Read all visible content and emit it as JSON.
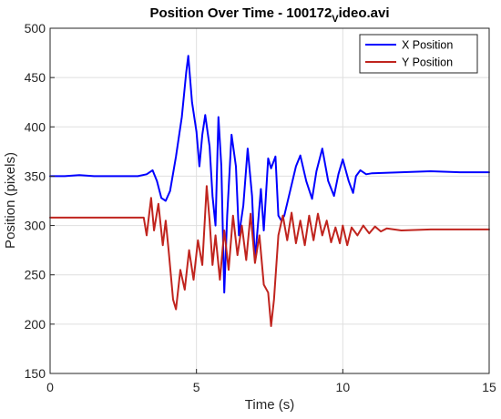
{
  "chart_data": {
    "type": "line",
    "title_main": "Position Over Time - 100172",
    "title_sub": "V",
    "title_tail": "ideo.avi",
    "xlabel": "Time (s)",
    "ylabel": "Position (pixels)",
    "xlim": [
      0,
      15
    ],
    "ylim": [
      150,
      500
    ],
    "xticks": [
      "0",
      "5",
      "10",
      "15"
    ],
    "yticks": [
      "150",
      "200",
      "250",
      "300",
      "350",
      "400",
      "450",
      "500"
    ],
    "grid": true,
    "legend_position": "top-right",
    "series": [
      {
        "name": "X Position",
        "color": "#0000ff",
        "points": [
          [
            0,
            350
          ],
          [
            0.5,
            350
          ],
          [
            1.0,
            351
          ],
          [
            1.5,
            350
          ],
          [
            2.0,
            350
          ],
          [
            2.5,
            350
          ],
          [
            3.0,
            350
          ],
          [
            3.3,
            352
          ],
          [
            3.5,
            356
          ],
          [
            3.65,
            345
          ],
          [
            3.8,
            328
          ],
          [
            3.95,
            325
          ],
          [
            4.1,
            335
          ],
          [
            4.3,
            370
          ],
          [
            4.5,
            410
          ],
          [
            4.65,
            455
          ],
          [
            4.72,
            472
          ],
          [
            4.85,
            425
          ],
          [
            5.0,
            395
          ],
          [
            5.1,
            360
          ],
          [
            5.2,
            392
          ],
          [
            5.3,
            412
          ],
          [
            5.45,
            380
          ],
          [
            5.55,
            330
          ],
          [
            5.65,
            300
          ],
          [
            5.75,
            410
          ],
          [
            5.85,
            360
          ],
          [
            5.95,
            232
          ],
          [
            6.05,
            310
          ],
          [
            6.2,
            392
          ],
          [
            6.35,
            360
          ],
          [
            6.45,
            290
          ],
          [
            6.6,
            320
          ],
          [
            6.75,
            378
          ],
          [
            6.9,
            330
          ],
          [
            7.0,
            265
          ],
          [
            7.1,
            300
          ],
          [
            7.2,
            337
          ],
          [
            7.3,
            295
          ],
          [
            7.45,
            368
          ],
          [
            7.55,
            358
          ],
          [
            7.7,
            370
          ],
          [
            7.8,
            310
          ],
          [
            7.9,
            305
          ],
          [
            8.0,
            310
          ],
          [
            8.2,
            335
          ],
          [
            8.4,
            360
          ],
          [
            8.55,
            371
          ],
          [
            8.75,
            345
          ],
          [
            8.95,
            327
          ],
          [
            9.1,
            355
          ],
          [
            9.3,
            378
          ],
          [
            9.5,
            345
          ],
          [
            9.7,
            330
          ],
          [
            9.85,
            352
          ],
          [
            10.0,
            367
          ],
          [
            10.2,
            345
          ],
          [
            10.35,
            333
          ],
          [
            10.45,
            350
          ],
          [
            10.6,
            356
          ],
          [
            10.8,
            352
          ],
          [
            11.0,
            353
          ],
          [
            12.0,
            354
          ],
          [
            13.0,
            355
          ],
          [
            14.0,
            354
          ],
          [
            15.0,
            354
          ]
        ]
      },
      {
        "name": "Y Position",
        "color": "#c0241e",
        "points": [
          [
            0,
            308
          ],
          [
            0.5,
            308
          ],
          [
            1.0,
            308
          ],
          [
            1.5,
            308
          ],
          [
            2.0,
            308
          ],
          [
            2.5,
            308
          ],
          [
            3.0,
            308
          ],
          [
            3.2,
            308
          ],
          [
            3.3,
            290
          ],
          [
            3.45,
            328
          ],
          [
            3.55,
            295
          ],
          [
            3.7,
            322
          ],
          [
            3.85,
            280
          ],
          [
            3.95,
            305
          ],
          [
            4.05,
            275
          ],
          [
            4.2,
            225
          ],
          [
            4.3,
            215
          ],
          [
            4.45,
            255
          ],
          [
            4.6,
            235
          ],
          [
            4.75,
            275
          ],
          [
            4.9,
            245
          ],
          [
            5.05,
            285
          ],
          [
            5.2,
            260
          ],
          [
            5.35,
            340
          ],
          [
            5.45,
            305
          ],
          [
            5.55,
            260
          ],
          [
            5.65,
            290
          ],
          [
            5.8,
            245
          ],
          [
            5.95,
            295
          ],
          [
            6.1,
            255
          ],
          [
            6.25,
            310
          ],
          [
            6.4,
            270
          ],
          [
            6.55,
            300
          ],
          [
            6.7,
            265
          ],
          [
            6.85,
            312
          ],
          [
            7.0,
            262
          ],
          [
            7.15,
            290
          ],
          [
            7.3,
            240
          ],
          [
            7.45,
            232
          ],
          [
            7.55,
            198
          ],
          [
            7.65,
            225
          ],
          [
            7.8,
            290
          ],
          [
            7.95,
            310
          ],
          [
            8.1,
            285
          ],
          [
            8.25,
            313
          ],
          [
            8.4,
            282
          ],
          [
            8.55,
            305
          ],
          [
            8.7,
            280
          ],
          [
            8.85,
            310
          ],
          [
            9.0,
            285
          ],
          [
            9.15,
            312
          ],
          [
            9.3,
            290
          ],
          [
            9.45,
            305
          ],
          [
            9.6,
            283
          ],
          [
            9.75,
            298
          ],
          [
            9.9,
            282
          ],
          [
            10.0,
            300
          ],
          [
            10.15,
            280
          ],
          [
            10.3,
            298
          ],
          [
            10.5,
            290
          ],
          [
            10.7,
            300
          ],
          [
            10.9,
            292
          ],
          [
            11.1,
            299
          ],
          [
            11.3,
            294
          ],
          [
            11.5,
            297
          ],
          [
            12.0,
            295
          ],
          [
            13.0,
            296
          ],
          [
            14.0,
            296
          ],
          [
            15.0,
            296
          ]
        ]
      }
    ]
  }
}
